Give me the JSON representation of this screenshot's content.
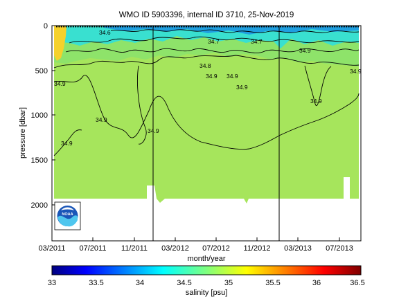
{
  "chart_data": {
    "type": "heatmap",
    "title": "WMO ID 5903396, internal ID 3710, 25-Nov-2019",
    "xlabel": "month/year",
    "ylabel": "pressure [dbar]",
    "x_ticks": [
      "03/2011",
      "07/2011",
      "11/2011",
      "03/2012",
      "07/2012",
      "11/2012",
      "03/2013",
      "07/2013"
    ],
    "y_ticks": [
      "0",
      "500",
      "1000",
      "1500",
      "2000"
    ],
    "ylim": [
      2400,
      0
    ],
    "colorbar": {
      "label": "salinity [psu]",
      "min": 33,
      "max": 36.5,
      "ticks": [
        "33",
        "33.5",
        "34",
        "34.5",
        "35",
        "35.5",
        "36",
        "36.5"
      ]
    },
    "contour_labels": [
      "34.9",
      "34.9",
      "34.9",
      "34.9",
      "34.9",
      "34.9",
      "34.9",
      "34.9",
      "34.8",
      "34.7",
      "34.7",
      "34.6",
      "34.9",
      "34.9"
    ],
    "max_profile_depth_dbar": 1950,
    "dominant_deep_salinity": 34.9,
    "logo_text": "NOAA"
  },
  "colors": {
    "deep_water": "#a6e55c",
    "mid_water": "#8ee36a",
    "surface_water": "#39e0d0",
    "fresh_surface": "#1f9fe0",
    "salty_surface": "#f6d12a"
  }
}
